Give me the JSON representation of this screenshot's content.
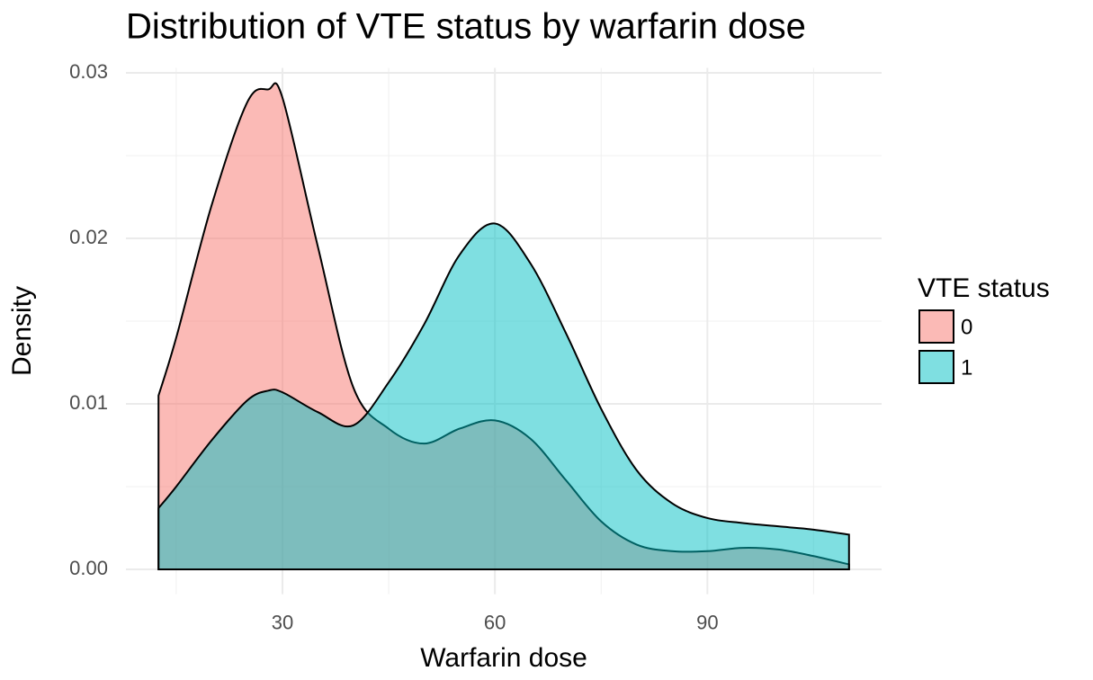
{
  "chart_data": {
    "type": "density",
    "title": "Distribution of VTE status by warfarin dose",
    "x_label": "Warfarin dose",
    "y_label": "Density",
    "legend_title": "VTE status",
    "legend_position": "right",
    "x": [
      12.5,
      15,
      20,
      25,
      28,
      30,
      35,
      40,
      45,
      50,
      55,
      60,
      65,
      70,
      75,
      80,
      85,
      90,
      95,
      100,
      105,
      110
    ],
    "series": [
      {
        "name": "0",
        "color": "#F8766D",
        "values": [
          0.0105,
          0.014,
          0.022,
          0.0282,
          0.029,
          0.0285,
          0.0195,
          0.011,
          0.0085,
          0.0076,
          0.0085,
          0.009,
          0.0079,
          0.0054,
          0.0029,
          0.0015,
          0.0011,
          0.0011,
          0.0013,
          0.0012,
          0.0008,
          0.0003
        ]
      },
      {
        "name": "1",
        "color": "#00BFC4",
        "values": [
          0.0037,
          0.005,
          0.0078,
          0.0102,
          0.0108,
          0.0107,
          0.0095,
          0.0087,
          0.0113,
          0.0148,
          0.019,
          0.0209,
          0.0185,
          0.0143,
          0.0097,
          0.006,
          0.004,
          0.0031,
          0.0028,
          0.0026,
          0.0024,
          0.0021
        ]
      }
    ],
    "xlim": [
      7.9,
      114.6
    ],
    "xticks": [
      30,
      60,
      90
    ],
    "ylim": [
      -0.0015,
      0.0303
    ],
    "yticks": [
      {
        "value": 0,
        "label": "0.00"
      },
      {
        "value": 0.01,
        "label": "0.01"
      },
      {
        "value": 0.02,
        "label": "0.02"
      },
      {
        "value": 0.03,
        "label": "0.03"
      }
    ],
    "grid": true,
    "fill_opacity": 0.5
  }
}
